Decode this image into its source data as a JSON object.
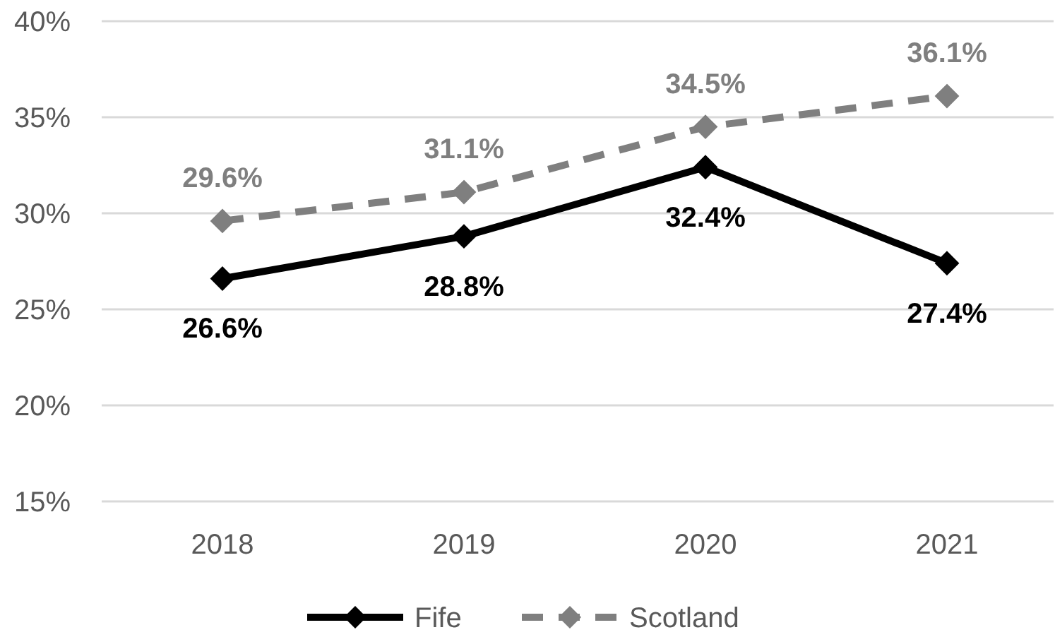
{
  "chart_data": {
    "type": "line",
    "categories": [
      "2018",
      "2019",
      "2020",
      "2021"
    ],
    "series": [
      {
        "name": "Fife",
        "color": "#000000",
        "line_style": "solid",
        "values": [
          26.6,
          28.8,
          32.4,
          27.4
        ],
        "value_labels": [
          "26.6%",
          "28.8%",
          "32.4%",
          "27.4%"
        ]
      },
      {
        "name": "Scotland",
        "color": "#7f7f7f",
        "line_style": "dashed",
        "values": [
          29.6,
          31.1,
          34.5,
          36.1
        ],
        "value_labels": [
          "29.6%",
          "31.1%",
          "34.5%",
          "36.1%"
        ]
      }
    ],
    "ylim": [
      15,
      40
    ],
    "yticks": [
      {
        "value": 15,
        "label": "15%"
      },
      {
        "value": 20,
        "label": "20%"
      },
      {
        "value": 25,
        "label": "25%"
      },
      {
        "value": 30,
        "label": "30%"
      },
      {
        "value": 35,
        "label": "35%"
      },
      {
        "value": 40,
        "label": "40%"
      }
    ],
    "grid": "y",
    "legend": "bottom",
    "marker": "diamond"
  }
}
